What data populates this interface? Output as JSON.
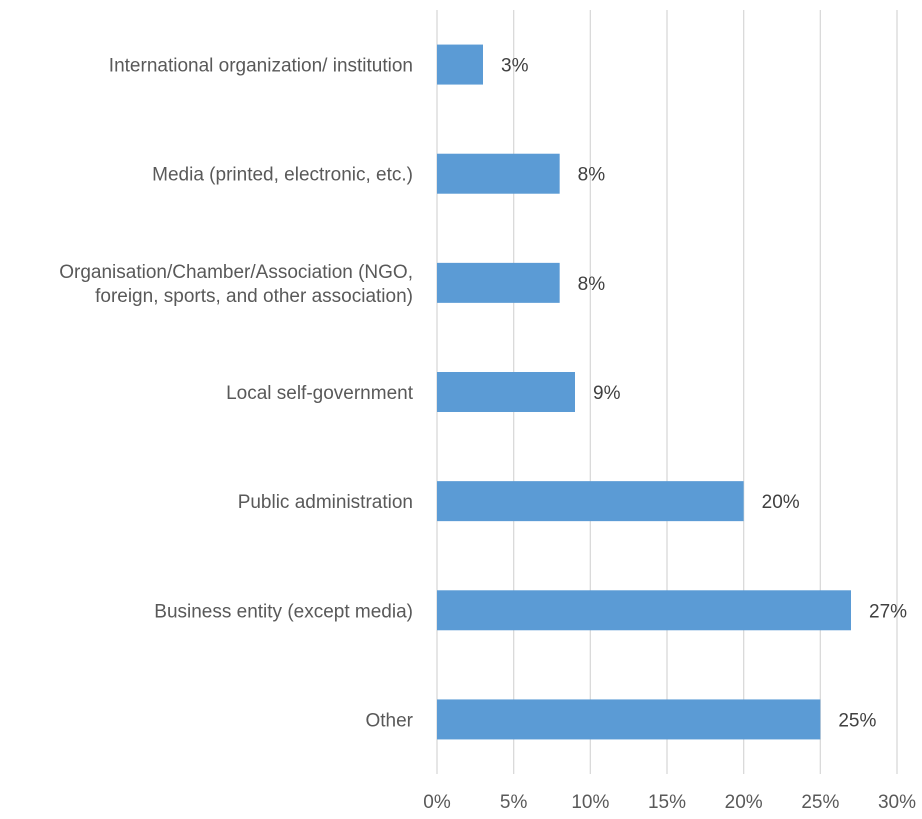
{
  "chart_data": {
    "type": "bar",
    "orientation": "horizontal",
    "categories": [
      [
        "International organization/ institution"
      ],
      [
        "Media (printed, electronic, etc.)"
      ],
      [
        "Organisation/Chamber/Association (NGO,",
        "foreign, sports, and other association)"
      ],
      [
        "Local self-government"
      ],
      [
        "Public administration"
      ],
      [
        "Business entity (except media)"
      ],
      [
        "Other"
      ]
    ],
    "values": [
      3,
      8,
      8,
      9,
      20,
      27,
      25
    ],
    "data_labels": [
      "3%",
      "8%",
      "8%",
      "9%",
      "20%",
      "27%",
      "25%"
    ],
    "x_ticks": [
      "0%",
      "5%",
      "10%",
      "15%",
      "20%",
      "25%",
      "30%"
    ],
    "xlim": [
      0,
      30
    ],
    "grid": "vertical",
    "bar_color": "#5b9bd5",
    "title": "",
    "xlabel": "",
    "ylabel": ""
  }
}
